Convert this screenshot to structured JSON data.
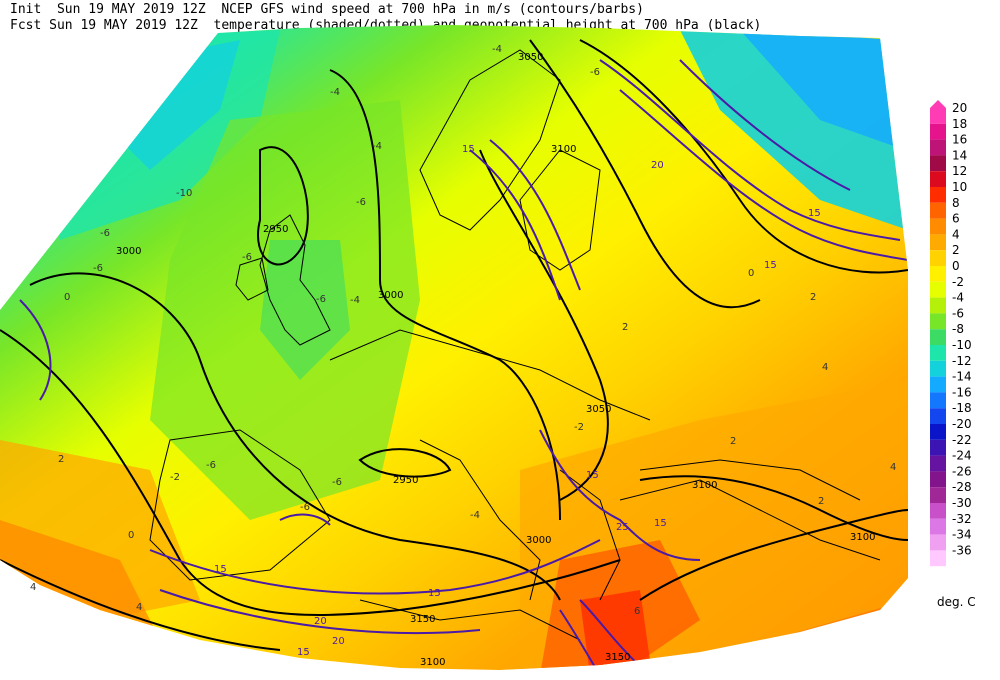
{
  "header": {
    "line1": "Init  Sun 19 MAY 2019 12Z  NCEP GFS wind speed at 700 hPa in m/s (contours/barbs)",
    "line2": "Fcst Sun 19 MAY 2019 12Z  temperature (shaded/dotted) and geopotential height at 700 hPa (black)"
  },
  "colorbar": {
    "unit": "deg. C",
    "levels": [
      {
        "v": "20",
        "c": "#ff3cb4"
      },
      {
        "v": "18",
        "c": "#e6148c"
      },
      {
        "v": "16",
        "c": "#be1478"
      },
      {
        "v": "14",
        "c": "#a00a46"
      },
      {
        "v": "12",
        "c": "#dc0a1e"
      },
      {
        "v": "10",
        "c": "#ff2d00"
      },
      {
        "v": "8",
        "c": "#ff6400"
      },
      {
        "v": "6",
        "c": "#ff8c00"
      },
      {
        "v": "4",
        "c": "#ffaa00"
      },
      {
        "v": "2",
        "c": "#ffd200"
      },
      {
        "v": "0",
        "c": "#fff000"
      },
      {
        "v": "-2",
        "c": "#e6ff00"
      },
      {
        "v": "-4",
        "c": "#b4f00a"
      },
      {
        "v": "-6",
        "c": "#78e628"
      },
      {
        "v": "-8",
        "c": "#3cdc64"
      },
      {
        "v": "-10",
        "c": "#1ee6aa"
      },
      {
        "v": "-12",
        "c": "#14d2dc"
      },
      {
        "v": "-14",
        "c": "#14aaff"
      },
      {
        "v": "-16",
        "c": "#1478ff"
      },
      {
        "v": "-18",
        "c": "#1446f0"
      },
      {
        "v": "-20",
        "c": "#0a14c8"
      },
      {
        "v": "-22",
        "c": "#3c14b4"
      },
      {
        "v": "-24",
        "c": "#6414a0"
      },
      {
        "v": "-26",
        "c": "#82148c"
      },
      {
        "v": "-28",
        "c": "#a02896"
      },
      {
        "v": "-30",
        "c": "#c850c8"
      },
      {
        "v": "-32",
        "c": "#dc78e6"
      },
      {
        "v": "-34",
        "c": "#f0a0f0"
      },
      {
        "v": "-36",
        "c": "#ffc8ff"
      }
    ]
  },
  "height_labels": [
    "3050",
    "3100",
    "2950",
    "3000",
    "3000",
    "3050",
    "2950",
    "3000",
    "3100",
    "3100",
    "3100",
    "3150",
    "3150"
  ],
  "wind_labels": [
    "15",
    "20",
    "15",
    "15",
    "15",
    "15",
    "15",
    "20",
    "20",
    "15",
    "25",
    "15"
  ],
  "temp_labels": [
    "-4",
    "-6",
    "-4",
    "-10",
    "-6",
    "-6",
    "-4",
    "-6",
    "-4",
    "-6",
    "-6",
    "0",
    "-2",
    "-4",
    "2",
    "2",
    "4",
    "2",
    "2",
    "4",
    "0",
    "-6",
    "-2",
    "0",
    "-6",
    "4",
    "2",
    "4",
    "-6",
    "6"
  ]
}
